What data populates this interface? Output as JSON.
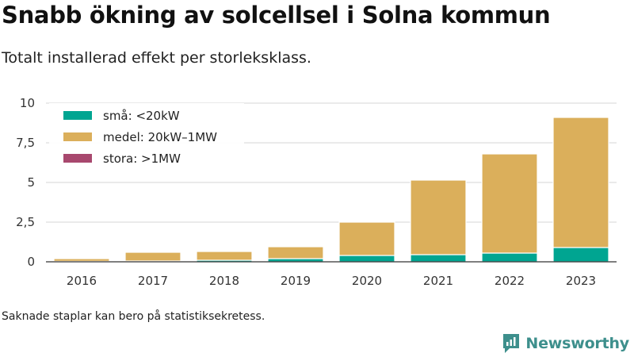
{
  "header": {
    "title": "Snabb ökning av solcellsel i Solna kommun",
    "subtitle": "Totalt installerad effekt per storleksklass."
  },
  "footer": {
    "note": "Saknade staplar kan bero på statistiksekretess.",
    "brand": "Newsworthy",
    "brand_icon": "newsworthy-logo-icon",
    "brand_color": "#3d8f8c"
  },
  "chart_data": {
    "type": "bar",
    "stacked": true,
    "categories": [
      "2016",
      "2017",
      "2018",
      "2019",
      "2020",
      "2021",
      "2022",
      "2023"
    ],
    "series": [
      {
        "name": "små: <20kW",
        "color": "#00a591",
        "values": [
          0.03,
          0.05,
          0.1,
          0.2,
          0.4,
          0.45,
          0.55,
          0.9
        ]
      },
      {
        "name": "medel: 20kW–1MW",
        "color": "#dbaf5b",
        "values": [
          0.17,
          0.55,
          0.55,
          0.75,
          2.1,
          4.7,
          6.25,
          8.2
        ]
      },
      {
        "name": "stora: >1MW",
        "color": "#a8486e",
        "values": [
          0,
          0,
          0,
          0,
          0,
          0,
          0,
          0
        ]
      }
    ],
    "yticks": [
      0,
      2.5,
      5,
      7.5,
      10
    ],
    "ytick_labels": [
      "0",
      "2,5",
      "5",
      "7,5",
      "10"
    ],
    "ylim": [
      0,
      10
    ],
    "grid": true,
    "legend_position": "top-left"
  }
}
